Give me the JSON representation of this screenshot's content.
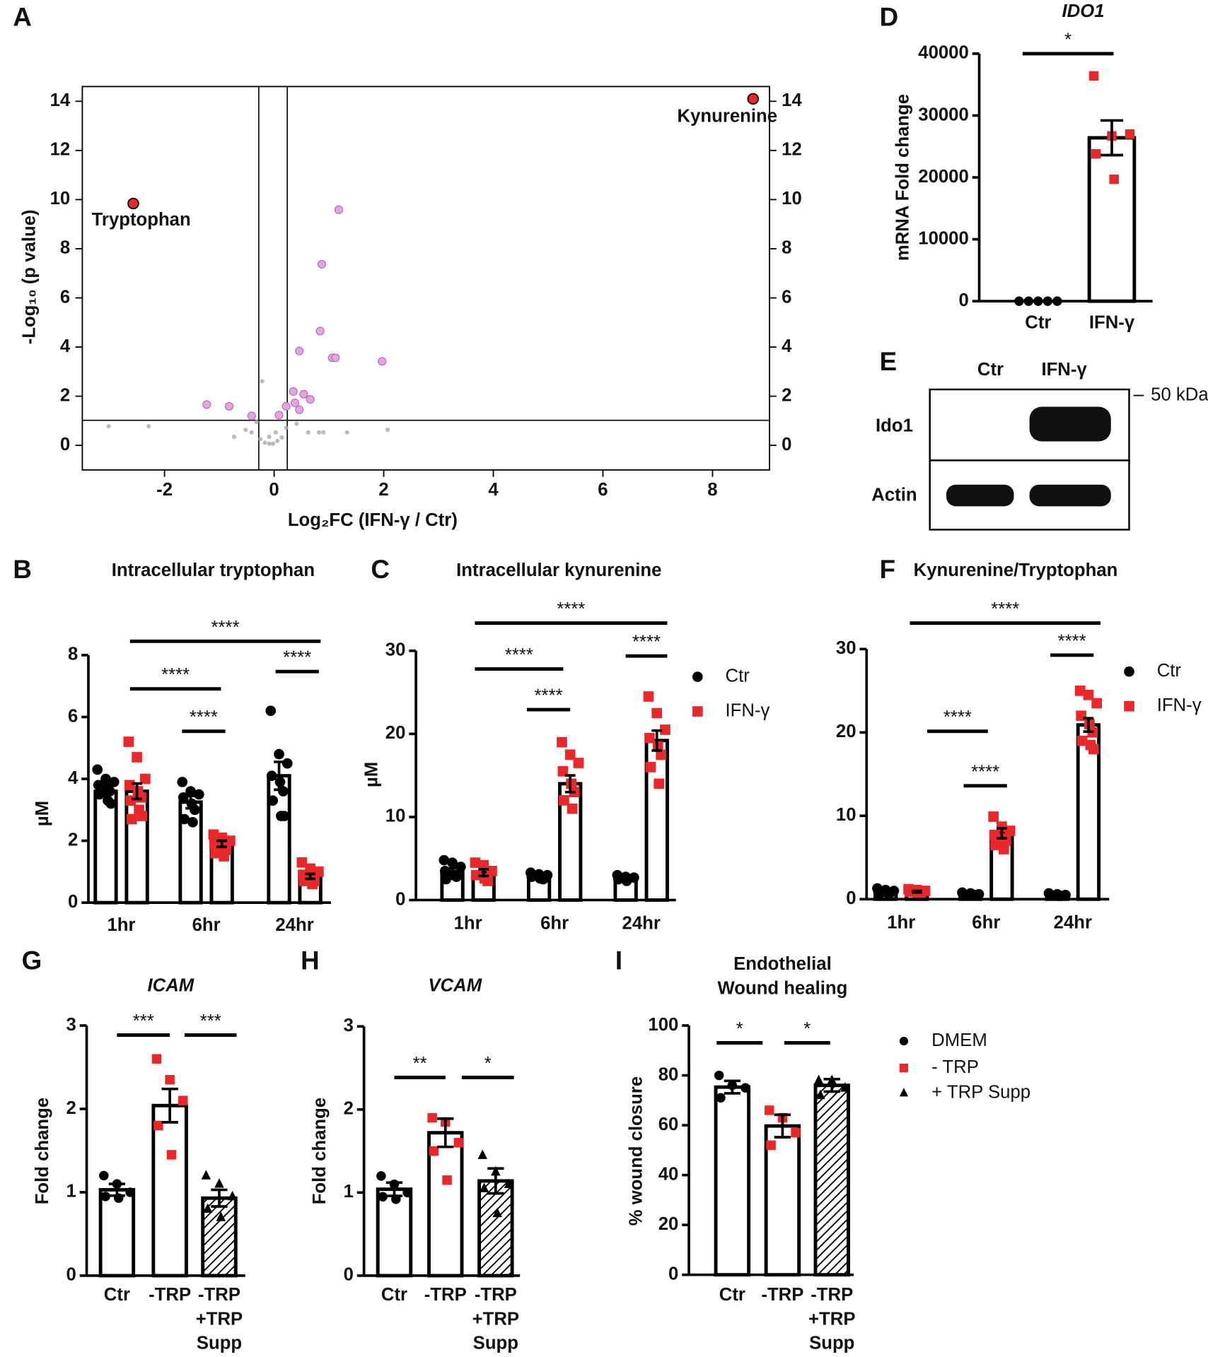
{
  "chart_data": [
    {
      "type": "scatter",
      "panel_label": "A",
      "xlabel": "Log₂FC (IFN-γ / Ctr)",
      "ylabel": "-Log₁₀ (p value)",
      "xlim": [
        -3.5,
        9.04
      ],
      "ylim": [
        -1,
        14.6
      ],
      "y2lim": [
        -1,
        14.6
      ],
      "xticks": [
        -2,
        0,
        2,
        4,
        6,
        8
      ],
      "yticks": [
        0,
        2,
        4,
        6,
        8,
        10,
        12,
        14
      ],
      "y2ticks": [
        0,
        2,
        4,
        6,
        8,
        10,
        12,
        14
      ],
      "ref_lines": {
        "x": [
          -0.28,
          0.24
        ],
        "y": [
          1.02
        ]
      },
      "series": [
        {
          "color": "#a9a9a9",
          "x": [
            -3.02,
            -2.29,
            -0.22,
            -0.52,
            -0.73,
            -0.41,
            -0.25,
            -0.17,
            -0.09,
            -0.02,
            0.06,
            0.14,
            0.03,
            0.22,
            0.41,
            0.62,
            0.82,
            0.9,
            1.33,
            2.07,
            -0.09,
            -0.32
          ],
          "values": [
            0.78,
            0.78,
            2.61,
            0.63,
            0.35,
            0.53,
            0.25,
            0.11,
            0.07,
            0.07,
            0.18,
            0.32,
            0.53,
            0.71,
            0.88,
            0.53,
            0.53,
            0.53,
            0.53,
            0.63,
            0.35,
            0.95
          ]
        },
        {
          "color": "#e6a3e3",
          "x": [
            -1.23,
            -0.82,
            -0.41,
            1.18,
            0.87,
            0.84,
            0.46,
            1.06,
            1.12,
            1.97,
            0.35,
            0.54,
            0.38,
            0.22,
            0.66,
            0.46,
            0.09
          ],
          "values": [
            1.66,
            1.59,
            1.2,
            9.59,
            7.37,
            4.65,
            3.84,
            3.56,
            3.56,
            3.42,
            2.19,
            2.08,
            1.73,
            1.59,
            1.87,
            1.45,
            1.23
          ]
        },
        {
          "color": "#e8282b",
          "x": [
            -2.57,
            8.74
          ],
          "values": [
            9.84,
            14.1
          ],
          "labels": [
            "Tryptophan",
            "Kynurenine"
          ]
        }
      ]
    },
    {
      "type": "bar",
      "panel_label": "D",
      "title": "IDO1",
      "ylabel": "mRNA Fold change",
      "categories": [
        "Ctr",
        "IFN-γ"
      ],
      "ylim": [
        0,
        40000
      ],
      "yticks": [
        0,
        10000,
        20000,
        30000,
        40000
      ],
      "values": [
        0,
        26400
      ],
      "errors": [
        0,
        2800
      ],
      "point_colors": [
        "#000000",
        "#e8282b"
      ],
      "markers": [
        "circle",
        "square"
      ],
      "patterns": [
        "none",
        "none"
      ],
      "points": [
        [
          0,
          0,
          0,
          0,
          0
        ],
        [
          36400,
          26700,
          27000,
          23800,
          19700
        ]
      ],
      "significance": [
        "*"
      ]
    },
    {
      "type": "blot",
      "panel_label": "E",
      "columns": [
        "Ctr",
        "IFN-γ"
      ],
      "rows": [
        "Ido1",
        "Actin"
      ],
      "size_marker": "50 kDa"
    },
    {
      "type": "grouped_bar",
      "panel_label": "B",
      "title": "Intracellular tryptophan",
      "ylabel": "µM",
      "categories": [
        "1hr",
        "6hr",
        "24hr"
      ],
      "ylim": [
        0,
        8
      ],
      "yticks": [
        0,
        2,
        4,
        6,
        8
      ],
      "significance": [
        "****",
        "****",
        "****",
        "****"
      ],
      "series": [
        {
          "color": "#000000",
          "marker": "circle",
          "values": [
            3.6,
            3.25,
            4.1
          ],
          "errors": [
            0.15,
            0.2,
            0.45
          ],
          "points": [
            [
              4.3,
              4.0,
              3.9,
              3.8,
              3.7,
              3.6,
              3.5,
              3.3,
              3.2
            ],
            [
              3.9,
              3.6,
              3.5,
              3.4,
              3.2,
              3.0,
              2.7,
              2.6
            ],
            [
              6.2,
              4.8,
              4.5,
              4.1,
              3.9,
              3.6,
              3.3,
              2.8,
              2.8
            ]
          ]
        },
        {
          "color": "#e8282b",
          "marker": "square",
          "values": [
            3.6,
            1.9,
            0.85
          ],
          "errors": [
            0.25,
            0.1,
            0.08
          ],
          "points": [
            [
              5.2,
              4.7,
              4.0,
              3.8,
              3.6,
              3.4,
              3.3,
              3.0,
              2.8,
              2.7
            ],
            [
              2.2,
              2.1,
              2.0,
              1.9,
              1.8,
              1.7,
              1.6,
              1.5
            ],
            [
              1.3,
              1.1,
              1.0,
              0.9,
              0.8,
              0.7,
              0.7,
              0.6
            ]
          ]
        }
      ]
    },
    {
      "type": "grouped_bar",
      "panel_label": "C",
      "title": "Intracellular kynurenine",
      "ylabel": "µM",
      "categories": [
        "1hr",
        "6hr",
        "24hr"
      ],
      "ylim": [
        0,
        30
      ],
      "yticks": [
        0,
        10,
        20,
        30
      ],
      "significance": [
        "****",
        "****",
        "****",
        "****"
      ],
      "legend": true,
      "series": [
        {
          "name": "Ctr",
          "color": "#000000",
          "marker": "circle",
          "values": [
            3.4,
            2.8,
            2.6
          ],
          "errors": [
            0.4,
            0.15,
            0.15
          ],
          "points": [
            [
              4.8,
              4.5,
              4.0,
              3.5,
              3.0,
              2.8,
              2.5
            ],
            [
              3.3,
              3.1,
              3.0,
              2.8,
              2.6,
              2.5
            ],
            [
              3.0,
              2.8,
              2.7,
              2.5,
              2.3
            ]
          ]
        },
        {
          "name": "IFN-γ",
          "color": "#e8282b",
          "marker": "square",
          "values": [
            3.3,
            14,
            19.2
          ],
          "errors": [
            0.4,
            1.0,
            1.2
          ],
          "points": [
            [
              4.5,
              4.2,
              3.5,
              3.0,
              2.6,
              2.3
            ],
            [
              19,
              17.5,
              16.5,
              15.5,
              14,
              13,
              12,
              11
            ],
            [
              24.5,
              22.5,
              20.5,
              19.5,
              18.5,
              17.5,
              16,
              14
            ]
          ]
        }
      ]
    },
    {
      "type": "grouped_bar",
      "panel_label": "F",
      "title": "Kynurenine/Tryptophan",
      "categories": [
        "1hr",
        "6hr",
        "24hr"
      ],
      "ylim": [
        0,
        30
      ],
      "yticks": [
        0,
        10,
        20,
        30
      ],
      "significance": [
        "****",
        "****",
        "****",
        "****"
      ],
      "legend": true,
      "series": [
        {
          "name": "Ctr",
          "color": "#000000",
          "marker": "circle",
          "values": [
            0.9,
            0.6,
            0.5
          ],
          "errors": [
            0.1,
            0.05,
            0.05
          ],
          "points": [
            [
              1.3,
              1.1,
              1.0,
              0.9,
              0.8,
              0.7,
              0.6
            ],
            [
              0.8,
              0.7,
              0.6,
              0.6,
              0.5,
              0.5
            ],
            [
              0.7,
              0.6,
              0.5,
              0.5,
              0.4,
              0.4
            ]
          ]
        },
        {
          "name": "IFN-γ",
          "color": "#e8282b",
          "marker": "square",
          "values": [
            0.9,
            7.9,
            20.9
          ],
          "errors": [
            0.1,
            0.6,
            0.8
          ],
          "points": [
            [
              1.2,
              1.1,
              1.0,
              0.9,
              0.8,
              0.7
            ],
            [
              9.9,
              8.7,
              8.2,
              7.7,
              7.3,
              7.0,
              6.5,
              6.0
            ],
            [
              25,
              24.5,
              23.5,
              22,
              21,
              20,
              19,
              18.5,
              18
            ]
          ]
        }
      ]
    },
    {
      "type": "bar",
      "panel_label": "G",
      "title": "ICAM",
      "ylabel": "Fold change",
      "categories": [
        "Ctr",
        "-TRP",
        "-TRP +TRP Supp"
      ],
      "ylim": [
        0,
        3
      ],
      "yticks": [
        0,
        1,
        2,
        3
      ],
      "values": [
        1.03,
        2.04,
        0.93
      ],
      "errors": [
        0.07,
        0.2,
        0.1
      ],
      "point_colors": [
        "#000000",
        "#e8282b",
        "#000000"
      ],
      "markers": [
        "circle",
        "square",
        "triangle"
      ],
      "patterns": [
        "none",
        "none",
        "hatch"
      ],
      "points": [
        [
          1.2,
          1.1,
          1.0,
          0.95,
          0.93
        ],
        [
          2.6,
          2.35,
          2.1,
          1.8,
          1.45
        ],
        [
          1.2,
          1.1,
          0.95,
          0.8,
          0.7
        ]
      ],
      "significance": [
        "***",
        "***"
      ]
    },
    {
      "type": "bar",
      "panel_label": "H",
      "title": "VCAM",
      "ylabel": "Fold change",
      "categories": [
        "Ctr",
        "-TRP",
        "-TRP +TRP Supp"
      ],
      "ylim": [
        0,
        3
      ],
      "yticks": [
        0,
        1,
        2,
        3
      ],
      "values": [
        1.04,
        1.72,
        1.14
      ],
      "errors": [
        0.08,
        0.17,
        0.15
      ],
      "point_colors": [
        "#000000",
        "#e8282b",
        "#000000"
      ],
      "markers": [
        "circle",
        "square",
        "triangle"
      ],
      "patterns": [
        "none",
        "none",
        "hatch"
      ],
      "points": [
        [
          1.2,
          1.1,
          1.0,
          0.95,
          0.92
        ],
        [
          1.9,
          1.85,
          1.6,
          1.5,
          1.15
        ],
        [
          1.45,
          1.25,
          1.1,
          1.05,
          0.75
        ]
      ],
      "significance": [
        "**",
        "*"
      ]
    },
    {
      "type": "bar",
      "panel_label": "I",
      "title_lines": [
        "Endothelial",
        "Wound healing"
      ],
      "ylabel": "% wound closure",
      "categories": [
        "Ctr",
        "-TRP",
        "-TRP +TRP Supp"
      ],
      "ylim": [
        0,
        100
      ],
      "yticks": [
        0,
        20,
        40,
        60,
        80,
        100
      ],
      "values": [
        75.3,
        59.7,
        76
      ],
      "errors": [
        2.5,
        4.5,
        2.5
      ],
      "point_colors": [
        "#000000",
        "#e8282b",
        "#000000"
      ],
      "markers": [
        "circle",
        "square",
        "triangle"
      ],
      "patterns": [
        "none",
        "none",
        "hatch"
      ],
      "points": [
        [
          80,
          76,
          75,
          71
        ],
        [
          66,
          63,
          57,
          52
        ],
        [
          78,
          78,
          75,
          72
        ]
      ],
      "significance": [
        "*",
        "*"
      ],
      "legend": [
        "DMEM",
        "- TRP",
        "+ TRP Supp"
      ]
    }
  ]
}
